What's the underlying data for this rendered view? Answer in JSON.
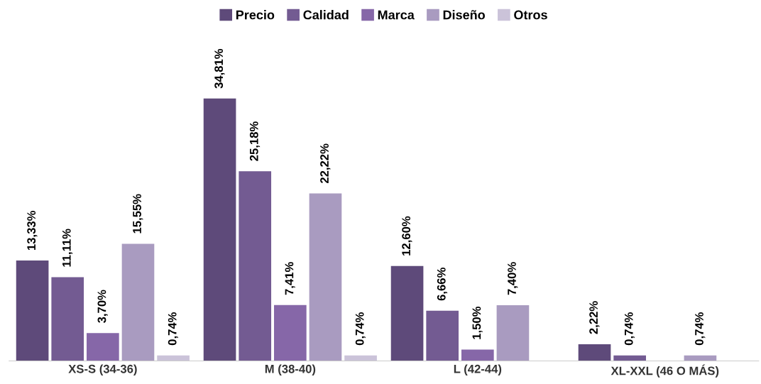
{
  "chart_data": {
    "type": "bar",
    "categories": [
      "XS-S (34-36)",
      "M (38-40)",
      "L (42-44)",
      "XL-XXL (46 O MÁS)"
    ],
    "series": [
      {
        "name": "Precio",
        "color": "#5e4a7a",
        "values": [
          13.33,
          34.81,
          12.6,
          2.22
        ],
        "value_labels": [
          "13,33%",
          "34,81%",
          "12,60%",
          "2,22%"
        ]
      },
      {
        "name": "Calidad",
        "color": "#735b92",
        "values": [
          11.11,
          25.18,
          6.66,
          0.74
        ],
        "value_labels": [
          "11,11%",
          "25,18%",
          "6,66%",
          "0,74%"
        ]
      },
      {
        "name": "Marca",
        "color": "#8667a8",
        "values": [
          3.7,
          7.41,
          1.5,
          null
        ],
        "value_labels": [
          "3,70%",
          "7,41%",
          "1,50%",
          null
        ]
      },
      {
        "name": "Diseño",
        "color": "#a99bc0",
        "values": [
          15.55,
          22.22,
          7.4,
          0.74
        ],
        "value_labels": [
          "15,55%",
          "22,22%",
          "7,40%",
          "0,74%"
        ]
      },
      {
        "name": "Otros",
        "color": "#cbc3d9",
        "values": [
          0.74,
          0.74,
          null,
          null
        ],
        "value_labels": [
          "0,74%",
          "0,74%",
          null,
          null
        ]
      }
    ],
    "legend": "top",
    "grid": false
  }
}
